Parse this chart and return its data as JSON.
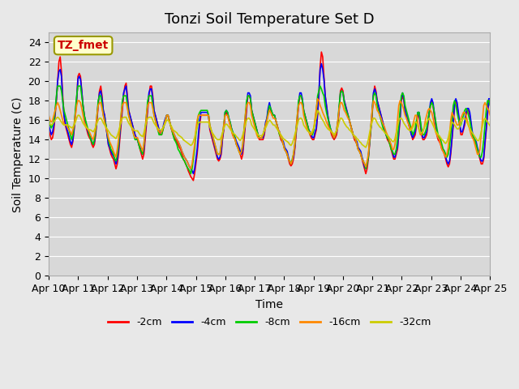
{
  "title": "Tonzi Soil Temperature Set D",
  "xlabel": "Time",
  "ylabel": "Soil Temperature (C)",
  "ylim": [
    0,
    25
  ],
  "yticks": [
    0,
    2,
    4,
    6,
    8,
    10,
    12,
    14,
    16,
    18,
    20,
    22,
    24
  ],
  "x_labels": [
    "Apr 10",
    "Apr 11",
    "Apr 12",
    "Apr 13",
    "Apr 14",
    "Apr 15",
    "Apr 16",
    "Apr 17",
    "Apr 18",
    "Apr 19",
    "Apr 20",
    "Apr 21",
    "Apr 22",
    "Apr 23",
    "Apr 24",
    "Apr 25"
  ],
  "legend_label": "TZ_fmet",
  "series_labels": [
    "-2cm",
    "-4cm",
    "-8cm",
    "-16cm",
    "-32cm"
  ],
  "series_colors": [
    "#ff0000",
    "#0000ff",
    "#00cc00",
    "#ff8800",
    "#cccc00"
  ],
  "background_color": "#e8e8e8",
  "plot_bg_color": "#d8d8d8",
  "title_fontsize": 13,
  "axis_fontsize": 10,
  "tick_fontsize": 9,
  "neg2cm": [
    15.0,
    14.5,
    14.0,
    14.2,
    15.0,
    16.5,
    18.0,
    20.0,
    22.0,
    22.5,
    21.0,
    18.5,
    16.5,
    15.5,
    15.0,
    14.5,
    14.0,
    13.5,
    13.2,
    13.8,
    15.0,
    16.5,
    18.0,
    20.5,
    20.8,
    20.5,
    19.0,
    17.5,
    16.5,
    15.5,
    15.0,
    14.5,
    14.2,
    14.0,
    13.5,
    13.2,
    13.5,
    14.5,
    16.0,
    17.5,
    19.0,
    19.5,
    18.5,
    17.0,
    16.5,
    15.5,
    14.5,
    13.5,
    13.0,
    12.5,
    12.2,
    12.0,
    11.5,
    11.0,
    11.5,
    12.5,
    14.0,
    15.5,
    17.0,
    18.5,
    19.5,
    19.8,
    18.5,
    17.0,
    16.5,
    16.0,
    15.5,
    15.0,
    14.5,
    14.2,
    14.0,
    13.5,
    13.0,
    12.5,
    12.0,
    12.5,
    14.0,
    15.5,
    17.0,
    18.5,
    19.5,
    19.5,
    18.5,
    17.0,
    16.5,
    16.0,
    15.5,
    15.0,
    14.5,
    14.5,
    15.0,
    15.5,
    16.0,
    16.5,
    16.5,
    16.0,
    15.5,
    15.0,
    14.5,
    14.2,
    14.0,
    13.8,
    13.5,
    13.2,
    13.0,
    12.5,
    12.0,
    11.8,
    11.5,
    11.2,
    10.8,
    10.5,
    10.2,
    10.0,
    9.8,
    10.5,
    11.5,
    12.5,
    14.0,
    15.5,
    16.5,
    16.5,
    16.5,
    16.5,
    16.5,
    16.5,
    16.5,
    15.0,
    14.5,
    14.0,
    13.5,
    13.0,
    12.5,
    12.0,
    11.8,
    12.0,
    12.5,
    14.0,
    15.0,
    16.5,
    16.8,
    16.5,
    16.0,
    15.5,
    15.0,
    14.5,
    14.2,
    14.0,
    13.5,
    13.2,
    13.0,
    12.5,
    12.0,
    12.5,
    14.0,
    15.5,
    17.0,
    18.5,
    18.5,
    18.2,
    17.0,
    16.5,
    16.0,
    15.5,
    15.0,
    14.5,
    14.0,
    14.0,
    14.0,
    14.0,
    14.5,
    15.5,
    16.0,
    17.0,
    17.5,
    17.0,
    16.5,
    16.5,
    16.5,
    16.0,
    15.5,
    15.0,
    14.5,
    14.0,
    13.8,
    13.5,
    13.0,
    12.8,
    12.5,
    12.0,
    11.5,
    11.3,
    11.5,
    12.0,
    13.0,
    14.5,
    16.0,
    17.5,
    18.5,
    18.5,
    18.0,
    17.0,
    16.5,
    16.0,
    15.5,
    15.0,
    14.5,
    14.2,
    14.0,
    14.0,
    14.5,
    15.0,
    16.5,
    18.5,
    21.5,
    23.0,
    22.5,
    20.5,
    18.5,
    17.5,
    16.5,
    15.5,
    15.0,
    14.5,
    14.2,
    14.0,
    14.2,
    14.5,
    15.5,
    17.0,
    19.0,
    19.3,
    19.0,
    18.0,
    17.5,
    17.0,
    16.5,
    16.0,
    15.5,
    15.0,
    14.5,
    14.0,
    13.8,
    13.5,
    13.0,
    12.8,
    12.5,
    12.0,
    11.5,
    11.0,
    10.5,
    11.0,
    12.0,
    13.5,
    15.0,
    16.5,
    18.5,
    19.5,
    19.0,
    18.0,
    17.5,
    17.0,
    16.5,
    16.0,
    15.5,
    15.0,
    14.5,
    14.0,
    13.8,
    13.5,
    13.0,
    12.5,
    12.0,
    12.0,
    12.5,
    13.0,
    14.5,
    16.0,
    18.0,
    18.5,
    18.0,
    17.0,
    16.5,
    16.0,
    15.5,
    15.0,
    14.5,
    14.0,
    14.2,
    14.5,
    15.5,
    16.5,
    16.5,
    15.5,
    14.5,
    14.0,
    14.0,
    14.2,
    14.5,
    15.5,
    16.5,
    17.5,
    18.0,
    17.5,
    16.5,
    15.5,
    14.5,
    14.0,
    13.8,
    13.5,
    13.0,
    12.8,
    12.5,
    12.0,
    11.5,
    11.2,
    11.5,
    12.5,
    14.0,
    15.5,
    17.5,
    18.0,
    17.5,
    16.5,
    15.5,
    14.5,
    14.5,
    15.0,
    15.5,
    16.5,
    17.0,
    17.0,
    16.5,
    15.5,
    14.5,
    14.0,
    13.8,
    13.5,
    13.0,
    12.5,
    12.0,
    11.5,
    11.5,
    12.0,
    13.5,
    15.0,
    16.5,
    18.0,
    18.0,
    17.5,
    17.0,
    16.5
  ],
  "neg4cm": [
    15.5,
    15.0,
    14.5,
    14.8,
    15.5,
    16.8,
    18.2,
    20.0,
    21.0,
    21.2,
    20.5,
    18.0,
    16.5,
    15.8,
    15.2,
    14.8,
    14.3,
    13.8,
    13.5,
    14.0,
    15.2,
    16.8,
    18.2,
    20.2,
    20.5,
    20.2,
    19.0,
    17.5,
    16.5,
    15.8,
    15.2,
    14.8,
    14.5,
    14.2,
    13.8,
    13.5,
    13.8,
    14.8,
    16.2,
    17.8,
    18.8,
    19.0,
    18.2,
    17.0,
    16.5,
    15.5,
    14.5,
    13.5,
    13.2,
    12.8,
    12.5,
    12.3,
    12.0,
    11.5,
    12.0,
    13.0,
    14.5,
    16.0,
    17.5,
    18.8,
    19.2,
    19.5,
    18.2,
    17.0,
    16.5,
    16.0,
    15.5,
    15.0,
    14.5,
    14.2,
    14.0,
    13.5,
    13.2,
    12.8,
    12.5,
    13.0,
    14.5,
    16.0,
    17.5,
    18.8,
    19.2,
    19.2,
    18.2,
    17.0,
    16.5,
    16.0,
    15.5,
    15.0,
    14.8,
    14.8,
    15.2,
    15.8,
    16.2,
    16.5,
    16.5,
    16.0,
    15.5,
    15.0,
    14.8,
    14.5,
    14.2,
    14.0,
    13.8,
    13.5,
    13.2,
    12.8,
    12.5,
    12.2,
    12.0,
    11.8,
    11.5,
    11.2,
    11.0,
    10.8,
    10.5,
    11.0,
    12.0,
    13.0,
    14.5,
    16.0,
    16.8,
    16.8,
    16.8,
    16.8,
    16.8,
    16.8,
    16.5,
    15.2,
    14.8,
    14.2,
    13.8,
    13.2,
    12.8,
    12.2,
    12.0,
    12.2,
    12.8,
    14.2,
    15.2,
    16.8,
    17.0,
    16.8,
    16.2,
    15.8,
    15.2,
    14.8,
    14.5,
    14.2,
    13.8,
    13.5,
    13.2,
    12.8,
    12.5,
    13.0,
    14.5,
    16.0,
    17.5,
    18.8,
    18.8,
    18.5,
    17.0,
    16.5,
    16.0,
    15.5,
    15.0,
    14.5,
    14.2,
    14.2,
    14.2,
    14.2,
    14.8,
    15.8,
    16.2,
    17.2,
    17.8,
    17.2,
    16.8,
    16.5,
    16.5,
    16.0,
    15.5,
    15.0,
    14.8,
    14.2,
    14.0,
    13.8,
    13.2,
    13.0,
    12.8,
    12.2,
    11.8,
    11.5,
    11.8,
    12.2,
    13.2,
    14.8,
    16.2,
    17.8,
    18.8,
    18.8,
    18.2,
    17.0,
    16.5,
    16.0,
    15.5,
    15.0,
    14.8,
    14.5,
    14.2,
    14.2,
    14.8,
    15.2,
    16.8,
    18.8,
    21.2,
    21.8,
    21.2,
    20.2,
    18.5,
    17.5,
    16.5,
    15.8,
    15.2,
    14.8,
    14.5,
    14.2,
    14.5,
    14.8,
    15.8,
    17.2,
    18.8,
    19.0,
    18.8,
    18.0,
    17.5,
    17.0,
    16.5,
    16.0,
    15.5,
    15.0,
    14.5,
    14.2,
    14.0,
    13.8,
    13.2,
    13.0,
    12.8,
    12.2,
    11.8,
    11.2,
    11.0,
    11.5,
    12.2,
    13.8,
    15.2,
    16.8,
    18.8,
    19.2,
    18.8,
    18.0,
    17.5,
    17.0,
    16.5,
    16.0,
    15.5,
    15.0,
    14.5,
    14.2,
    14.0,
    13.8,
    13.2,
    12.8,
    12.2,
    12.2,
    12.8,
    13.2,
    14.8,
    16.2,
    18.2,
    18.8,
    18.2,
    17.0,
    16.5,
    16.0,
    15.5,
    15.0,
    14.5,
    14.2,
    14.5,
    14.8,
    15.8,
    16.8,
    16.8,
    15.8,
    14.8,
    14.2,
    14.2,
    14.5,
    14.8,
    15.8,
    16.8,
    17.8,
    18.2,
    17.8,
    16.8,
    15.8,
    14.8,
    14.2,
    14.0,
    13.8,
    13.2,
    13.0,
    12.8,
    12.2,
    11.8,
    11.5,
    11.8,
    12.8,
    14.2,
    15.8,
    17.8,
    18.2,
    17.8,
    16.8,
    15.8,
    14.8,
    14.8,
    15.2,
    15.8,
    16.8,
    17.2,
    17.2,
    16.8,
    15.8,
    14.8,
    14.2,
    14.0,
    13.8,
    13.2,
    12.8,
    12.2,
    11.8,
    11.8,
    12.2,
    13.8,
    15.2,
    16.8,
    18.2,
    18.2,
    17.8,
    17.2,
    16.8
  ],
  "neg8cm": [
    16.0,
    15.5,
    15.2,
    15.5,
    16.0,
    17.0,
    18.5,
    19.5,
    19.5,
    19.5,
    19.0,
    18.0,
    17.0,
    16.5,
    16.0,
    15.5,
    15.0,
    14.5,
    14.0,
    14.5,
    15.5,
    17.0,
    18.5,
    19.5,
    19.5,
    19.5,
    18.5,
    17.5,
    16.5,
    16.0,
    15.5,
    15.0,
    14.5,
    14.0,
    13.8,
    13.5,
    14.0,
    15.0,
    16.5,
    18.0,
    18.5,
    18.5,
    17.5,
    16.5,
    16.0,
    15.5,
    14.8,
    14.0,
    13.5,
    13.0,
    12.8,
    12.5,
    12.0,
    11.8,
    12.5,
    13.5,
    15.0,
    16.5,
    18.0,
    18.5,
    18.5,
    18.5,
    17.5,
    16.5,
    16.0,
    15.5,
    15.0,
    14.5,
    14.0,
    14.0,
    14.0,
    13.5,
    13.0,
    12.8,
    12.5,
    13.5,
    15.0,
    16.5,
    18.0,
    18.5,
    18.5,
    18.5,
    17.5,
    16.5,
    16.0,
    15.5,
    15.0,
    14.5,
    14.5,
    14.5,
    15.0,
    15.5,
    16.0,
    16.5,
    16.5,
    16.0,
    15.5,
    15.0,
    14.5,
    14.0,
    13.8,
    13.5,
    13.0,
    12.8,
    12.5,
    12.2,
    12.0,
    11.8,
    11.5,
    11.2,
    11.0,
    10.8,
    10.5,
    11.0,
    12.0,
    13.0,
    14.5,
    15.5,
    16.5,
    16.8,
    17.0,
    17.0,
    17.0,
    17.0,
    17.0,
    17.0,
    16.5,
    15.5,
    15.0,
    14.5,
    14.0,
    13.5,
    13.0,
    12.5,
    12.5,
    12.5,
    13.5,
    14.5,
    15.5,
    16.8,
    17.0,
    16.8,
    16.2,
    15.8,
    15.2,
    14.8,
    14.5,
    14.0,
    13.5,
    13.2,
    12.8,
    12.5,
    12.8,
    13.5,
    15.0,
    16.5,
    18.0,
    18.5,
    18.5,
    18.2,
    17.0,
    16.5,
    16.0,
    15.5,
    15.0,
    14.5,
    14.2,
    14.2,
    14.2,
    14.5,
    15.0,
    15.5,
    16.0,
    16.8,
    17.5,
    17.2,
    16.8,
    16.5,
    16.5,
    16.0,
    15.5,
    15.0,
    14.5,
    14.2,
    14.0,
    13.5,
    13.0,
    12.8,
    12.5,
    12.0,
    11.8,
    11.5,
    12.0,
    12.5,
    13.5,
    15.0,
    16.5,
    18.0,
    18.5,
    18.5,
    18.0,
    17.0,
    16.5,
    16.0,
    15.5,
    15.0,
    14.5,
    14.5,
    14.5,
    15.0,
    16.0,
    17.0,
    18.5,
    19.0,
    19.5,
    19.2,
    18.8,
    18.5,
    17.5,
    16.8,
    16.2,
    15.8,
    15.2,
    14.8,
    14.5,
    14.2,
    14.5,
    15.0,
    16.0,
    17.5,
    18.8,
    19.0,
    18.8,
    17.8,
    17.2,
    16.8,
    16.5,
    16.0,
    15.5,
    15.0,
    14.5,
    14.2,
    14.0,
    13.5,
    13.0,
    12.8,
    12.5,
    12.0,
    11.8,
    11.5,
    11.0,
    11.5,
    12.2,
    13.8,
    15.2,
    16.8,
    18.5,
    18.8,
    18.5,
    17.5,
    17.0,
    16.5,
    16.0,
    15.5,
    15.0,
    14.8,
    14.5,
    14.2,
    14.0,
    13.5,
    13.0,
    12.8,
    12.5,
    12.5,
    13.0,
    14.0,
    15.5,
    17.0,
    18.5,
    18.8,
    18.5,
    17.5,
    17.0,
    16.5,
    16.0,
    15.5,
    15.0,
    14.5,
    14.8,
    15.2,
    16.0,
    16.8,
    16.8,
    16.0,
    15.0,
    14.5,
    14.5,
    14.8,
    15.2,
    16.0,
    16.8,
    17.5,
    17.8,
    17.5,
    16.8,
    16.0,
    15.2,
    14.5,
    14.2,
    14.0,
    13.5,
    13.0,
    12.8,
    12.5,
    12.2,
    12.5,
    13.2,
    14.5,
    16.0,
    17.5,
    18.0,
    17.5,
    16.8,
    16.2,
    15.5,
    15.5,
    16.0,
    16.5,
    17.0,
    17.2,
    17.0,
    16.5,
    16.0,
    15.2,
    14.5,
    14.2,
    14.0,
    13.5,
    13.0,
    12.5,
    12.2,
    12.2,
    12.8,
    14.0,
    15.5,
    17.0,
    18.0,
    18.0,
    17.5,
    17.0,
    16.5
  ],
  "neg16cm": [
    16.5,
    16.0,
    15.8,
    16.0,
    16.5,
    17.0,
    17.5,
    17.8,
    17.5,
    17.0,
    16.5,
    16.0,
    15.5,
    15.5,
    15.5,
    15.2,
    15.0,
    14.8,
    14.5,
    15.0,
    15.5,
    16.5,
    17.5,
    18.0,
    18.0,
    17.8,
    17.2,
    16.5,
    15.8,
    15.5,
    15.2,
    15.0,
    14.8,
    14.5,
    14.2,
    14.0,
    14.5,
    15.2,
    16.5,
    17.5,
    17.8,
    17.8,
    17.2,
    16.5,
    15.8,
    15.2,
    14.8,
    14.2,
    13.8,
    13.5,
    13.2,
    12.8,
    12.5,
    12.2,
    13.0,
    14.0,
    15.2,
    16.5,
    17.5,
    17.8,
    17.8,
    17.8,
    17.2,
    16.5,
    16.0,
    15.5,
    15.0,
    14.5,
    14.2,
    14.2,
    14.2,
    13.8,
    13.5,
    13.2,
    12.8,
    13.5,
    15.0,
    16.5,
    17.5,
    17.8,
    17.8,
    17.8,
    17.2,
    16.5,
    16.0,
    15.5,
    15.0,
    14.8,
    14.8,
    14.8,
    15.2,
    15.5,
    16.0,
    16.5,
    16.5,
    16.0,
    15.5,
    15.0,
    14.8,
    14.5,
    14.2,
    14.0,
    13.8,
    13.5,
    13.2,
    12.8,
    12.5,
    12.2,
    12.0,
    11.8,
    11.5,
    11.2,
    11.0,
    11.5,
    12.5,
    13.5,
    15.0,
    16.0,
    16.5,
    16.5,
    16.5,
    16.5,
    16.5,
    16.5,
    16.5,
    16.5,
    16.5,
    15.5,
    15.0,
    14.5,
    14.0,
    13.5,
    13.0,
    12.5,
    12.5,
    12.5,
    13.5,
    14.5,
    15.5,
    16.5,
    16.5,
    16.5,
    16.0,
    15.5,
    15.0,
    14.5,
    14.2,
    14.0,
    13.5,
    13.2,
    12.8,
    12.5,
    12.8,
    13.5,
    15.0,
    16.5,
    17.5,
    17.8,
    17.8,
    17.5,
    16.5,
    16.0,
    15.5,
    15.0,
    14.5,
    14.2,
    14.2,
    14.2,
    14.2,
    14.5,
    15.0,
    15.5,
    16.0,
    16.5,
    17.0,
    16.8,
    16.5,
    16.2,
    16.2,
    16.0,
    15.5,
    15.0,
    14.8,
    14.2,
    14.0,
    13.5,
    13.0,
    12.8,
    12.5,
    12.0,
    11.8,
    11.5,
    11.8,
    12.5,
    13.5,
    15.0,
    16.5,
    17.5,
    17.8,
    17.8,
    17.5,
    16.5,
    16.0,
    15.5,
    15.0,
    14.8,
    14.5,
    14.5,
    14.8,
    15.2,
    16.2,
    17.2,
    18.2,
    18.0,
    17.5,
    17.2,
    16.8,
    16.5,
    16.2,
    15.8,
    15.5,
    15.2,
    15.0,
    14.8,
    14.5,
    14.2,
    14.5,
    15.0,
    16.0,
    17.2,
    17.8,
    17.8,
    17.5,
    17.0,
    16.8,
    16.5,
    16.2,
    16.0,
    15.5,
    15.0,
    14.5,
    14.2,
    14.0,
    13.5,
    13.0,
    12.8,
    12.5,
    12.0,
    11.8,
    11.5,
    11.2,
    11.8,
    12.5,
    14.0,
    15.5,
    17.0,
    18.0,
    17.8,
    17.5,
    17.0,
    16.8,
    16.5,
    16.2,
    15.8,
    15.5,
    15.2,
    14.8,
    14.5,
    14.2,
    13.8,
    13.5,
    13.0,
    13.0,
    13.5,
    14.5,
    16.0,
    17.5,
    18.0,
    17.8,
    17.5,
    17.0,
    16.5,
    16.2,
    15.8,
    15.5,
    15.0,
    15.2,
    15.5,
    16.0,
    16.5,
    16.5,
    15.8,
    15.0,
    14.5,
    14.5,
    14.8,
    15.2,
    16.0,
    16.5,
    17.0,
    17.2,
    17.0,
    16.8,
    16.2,
    15.5,
    14.8,
    14.5,
    14.2,
    14.0,
    13.5,
    13.0,
    12.8,
    12.5,
    12.2,
    12.5,
    13.2,
    14.5,
    16.0,
    16.8,
    16.5,
    16.2,
    15.8,
    15.5,
    15.5,
    15.8,
    16.2,
    16.5,
    16.8,
    16.8,
    16.5,
    16.0,
    15.5,
    15.0,
    14.5,
    14.2,
    14.0,
    13.5,
    13.0,
    12.5,
    12.5,
    13.0,
    14.5,
    16.0,
    17.5,
    17.8,
    17.5,
    17.2,
    17.0,
    16.5
  ],
  "neg32cm": [
    15.8,
    15.6,
    15.5,
    15.6,
    15.8,
    16.0,
    16.2,
    16.3,
    16.2,
    16.0,
    15.8,
    15.6,
    15.5,
    15.5,
    15.5,
    15.5,
    15.4,
    15.3,
    15.2,
    15.3,
    15.5,
    15.8,
    16.2,
    16.5,
    16.5,
    16.3,
    16.0,
    15.7,
    15.5,
    15.3,
    15.2,
    15.1,
    15.0,
    15.0,
    14.9,
    14.8,
    15.0,
    15.3,
    15.7,
    16.0,
    16.2,
    16.2,
    16.0,
    15.7,
    15.5,
    15.3,
    15.1,
    14.9,
    14.7,
    14.5,
    14.4,
    14.3,
    14.2,
    14.1,
    14.4,
    14.8,
    15.3,
    15.8,
    16.2,
    16.3,
    16.3,
    16.3,
    16.0,
    15.7,
    15.5,
    15.3,
    15.2,
    15.0,
    14.9,
    14.9,
    14.9,
    14.7,
    14.5,
    14.4,
    14.3,
    14.7,
    15.3,
    15.8,
    16.2,
    16.3,
    16.3,
    16.3,
    16.0,
    15.7,
    15.5,
    15.3,
    15.2,
    15.0,
    15.0,
    15.0,
    15.2,
    15.5,
    15.7,
    16.0,
    16.0,
    15.8,
    15.5,
    15.3,
    15.0,
    14.9,
    14.8,
    14.7,
    14.5,
    14.4,
    14.3,
    14.2,
    14.0,
    13.9,
    13.8,
    13.7,
    13.6,
    13.5,
    13.4,
    13.5,
    13.8,
    14.2,
    14.8,
    15.3,
    15.7,
    15.8,
    15.8,
    15.8,
    15.8,
    15.8,
    15.8,
    15.8,
    15.8,
    15.3,
    15.0,
    14.7,
    14.5,
    14.3,
    14.1,
    14.0,
    14.0,
    14.0,
    14.3,
    14.7,
    15.1,
    15.5,
    15.6,
    15.5,
    15.3,
    15.1,
    14.9,
    14.7,
    14.6,
    14.5,
    14.3,
    14.2,
    14.0,
    13.9,
    14.1,
    14.5,
    15.0,
    15.5,
    16.0,
    16.2,
    16.2,
    16.0,
    15.5,
    15.3,
    15.1,
    14.9,
    14.7,
    14.5,
    14.4,
    14.4,
    14.4,
    14.6,
    14.9,
    15.2,
    15.5,
    15.8,
    16.0,
    15.9,
    15.7,
    15.5,
    15.5,
    15.3,
    15.1,
    14.9,
    14.7,
    14.5,
    14.3,
    14.1,
    14.0,
    13.9,
    13.8,
    13.7,
    13.5,
    13.4,
    13.6,
    14.0,
    14.5,
    15.0,
    15.5,
    16.0,
    16.2,
    16.2,
    16.0,
    15.5,
    15.3,
    15.1,
    14.9,
    14.8,
    14.7,
    14.7,
    14.9,
    15.2,
    15.8,
    16.3,
    17.0,
    16.8,
    16.5,
    16.2,
    16.0,
    15.8,
    15.5,
    15.3,
    15.1,
    15.0,
    14.9,
    14.8,
    14.7,
    14.5,
    14.7,
    14.9,
    15.3,
    15.8,
    16.2,
    16.2,
    16.0,
    15.7,
    15.5,
    15.3,
    15.2,
    15.0,
    14.9,
    14.7,
    14.5,
    14.4,
    14.3,
    14.1,
    14.0,
    13.8,
    13.7,
    13.5,
    13.4,
    13.3,
    13.2,
    13.5,
    14.0,
    14.7,
    15.3,
    15.8,
    16.2,
    16.2,
    16.0,
    15.7,
    15.5,
    15.3,
    15.2,
    15.0,
    14.9,
    14.7,
    14.6,
    14.4,
    14.3,
    14.1,
    14.0,
    13.8,
    13.8,
    14.1,
    14.7,
    15.3,
    15.9,
    16.2,
    16.2,
    16.0,
    15.7,
    15.5,
    15.3,
    15.1,
    15.0,
    14.9,
    15.0,
    15.2,
    15.5,
    15.8,
    15.8,
    15.4,
    15.0,
    14.7,
    14.7,
    14.9,
    15.2,
    15.5,
    15.8,
    16.0,
    16.2,
    16.0,
    15.8,
    15.5,
    15.2,
    14.9,
    14.7,
    14.5,
    14.4,
    14.2,
    14.0,
    13.9,
    13.7,
    13.6,
    13.8,
    14.2,
    14.8,
    15.4,
    15.8,
    15.7,
    15.5,
    15.3,
    15.1,
    15.1,
    15.3,
    15.7,
    16.0,
    16.2,
    16.2,
    16.0,
    15.7,
    15.4,
    15.2,
    14.9,
    14.7,
    14.5,
    14.3,
    14.1,
    13.9,
    13.9,
    14.2,
    14.8,
    15.4,
    16.0,
    16.2,
    16.0,
    15.8,
    15.6,
    15.4
  ]
}
